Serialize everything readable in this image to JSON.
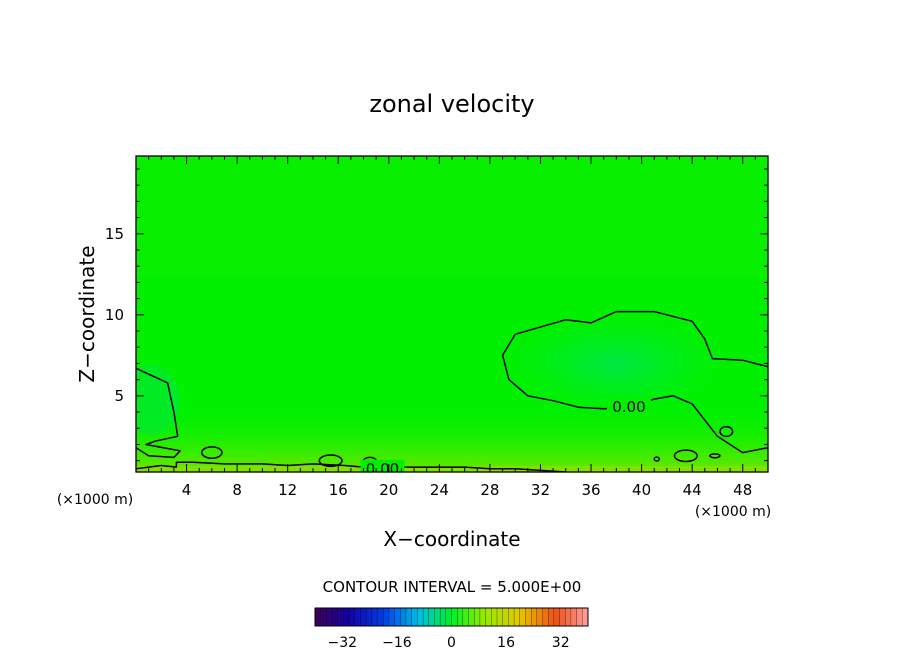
{
  "chart_data": {
    "type": "heatmap",
    "title": "zonal velocity",
    "xlabel": "X−coordinate",
    "ylabel": "Z−coordinate",
    "x_unit_left": "(×1000 m)",
    "x_unit_right": "(×1000 m)",
    "xlim": [
      0,
      50
    ],
    "ylim": [
      0.3,
      19.8
    ],
    "x_ticks": [
      4,
      8,
      12,
      16,
      20,
      24,
      28,
      32,
      36,
      40,
      44,
      48
    ],
    "y_ticks": [
      5,
      10,
      15
    ],
    "contour_interval_label": "CONTOUR INTERVAL = 5.000E+00",
    "contour_interval": 5,
    "contour_labels": [
      {
        "text": "0.00",
        "x": 39.0,
        "y": 4.3
      },
      {
        "text": "0.00",
        "x": 19.5,
        "y": 0.5
      }
    ],
    "colorbar": {
      "range": [
        -40,
        40
      ],
      "ticks": [
        -32,
        -16,
        0,
        16,
        32
      ],
      "tick_labels": [
        "−32",
        "−16",
        "0",
        "16",
        "32"
      ]
    },
    "field_description_values": {
      "background": 0,
      "positive_region_near_surface": 2,
      "negative_pocket_center": [
        38,
        6.5
      ]
    },
    "zero_contours": [
      [
        [
          0,
          6.7
        ],
        [
          2.5,
          5.8
        ],
        [
          3,
          4
        ],
        [
          3.3,
          2.5
        ],
        [
          1.5,
          2.2
        ],
        [
          0.8,
          2.0
        ],
        [
          3.5,
          1.6
        ],
        [
          3,
          1.2
        ],
        [
          1,
          1.3
        ],
        [
          0,
          1.8
        ]
      ],
      [
        [
          30,
          8.8
        ],
        [
          34,
          9.7
        ],
        [
          36,
          9.5
        ],
        [
          38,
          10.2
        ],
        [
          41,
          10.2
        ],
        [
          44,
          9.6
        ],
        [
          45,
          8.5
        ],
        [
          45.6,
          7.3
        ],
        [
          48,
          7.2
        ],
        [
          50,
          6.8
        ]
      ],
      [
        [
          30,
          8.8
        ],
        [
          29,
          7.5
        ],
        [
          29.5,
          6
        ],
        [
          31,
          5
        ],
        [
          33,
          4.7
        ],
        [
          35,
          4.3
        ],
        [
          37,
          4.2
        ],
        [
          39,
          4.3
        ],
        [
          41,
          4.8
        ],
        [
          42.5,
          5
        ],
        [
          44,
          4.5
        ],
        [
          45,
          3.5
        ],
        [
          46,
          2.5
        ],
        [
          47,
          2.0
        ],
        [
          48,
          1.5
        ],
        [
          50,
          1.8
        ]
      ],
      [
        [
          0,
          0.5
        ],
        [
          2,
          0.7
        ],
        [
          3.2,
          0.6
        ],
        [
          3.2,
          0.9
        ],
        [
          4.5,
          0.9
        ],
        [
          7,
          0.8
        ],
        [
          10,
          0.8
        ],
        [
          12,
          0.7
        ],
        [
          14,
          0.8
        ],
        [
          16.5,
          0.7
        ],
        [
          18,
          0.6
        ],
        [
          22,
          0.6
        ],
        [
          26,
          0.6
        ],
        [
          28,
          0.5
        ],
        [
          30,
          0.5
        ],
        [
          32,
          0.4
        ],
        [
          34,
          0.3
        ]
      ]
    ],
    "small_loops": [
      {
        "x": 6,
        "y": 1.5,
        "rx": 0.8,
        "ry": 0.35
      },
      {
        "x": 15.4,
        "y": 1.0,
        "rx": 0.9,
        "ry": 0.35
      },
      {
        "x": 18.5,
        "y": 1.0,
        "rx": 0.5,
        "ry": 0.2
      },
      {
        "x": 43.5,
        "y": 1.3,
        "rx": 0.9,
        "ry": 0.35
      },
      {
        "x": 46.7,
        "y": 2.8,
        "rx": 0.5,
        "ry": 0.3
      },
      {
        "x": 45.8,
        "y": 1.3,
        "rx": 0.4,
        "ry": 0.12
      },
      {
        "x": 41.2,
        "y": 1.1,
        "rx": 0.2,
        "ry": 0.12
      }
    ]
  }
}
